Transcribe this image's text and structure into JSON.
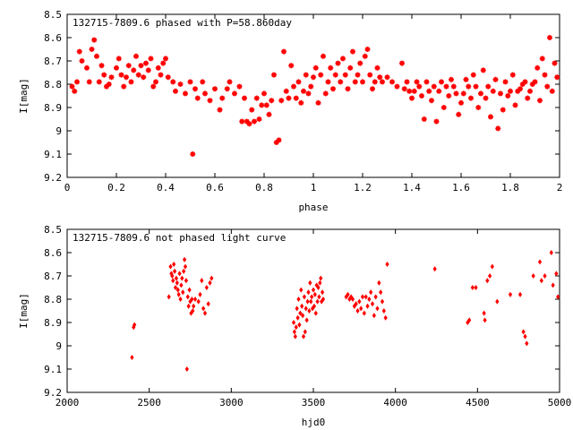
{
  "chart_data": [
    {
      "type": "scatter",
      "title": "132715-7809.6 phased with P=58.860day",
      "xlabel": "phase",
      "ylabel": "I[mag]",
      "xlim": [
        0,
        2
      ],
      "ylim": [
        8.5,
        9.2
      ],
      "y_inverted": true,
      "x_ticks": [
        "0",
        "0.2",
        "0.4",
        "0.6",
        "0.8",
        "1",
        "1.2",
        "1.4",
        "1.6",
        "1.8",
        "2"
      ],
      "y_ticks": [
        "8.5",
        "8.6",
        "8.7",
        "8.8",
        "8.9",
        "9",
        "9.1",
        "9.2"
      ],
      "marker_color": "#ff0000",
      "points": [
        [
          0.02,
          8.81
        ],
        [
          0.03,
          8.83
        ],
        [
          0.04,
          8.79
        ],
        [
          0.05,
          8.66
        ],
        [
          0.06,
          8.7
        ],
        [
          0.08,
          8.73
        ],
        [
          0.09,
          8.79
        ],
        [
          0.1,
          8.65
        ],
        [
          0.11,
          8.61
        ],
        [
          0.12,
          8.68
        ],
        [
          0.13,
          8.79
        ],
        [
          0.14,
          8.72
        ],
        [
          0.15,
          8.76
        ],
        [
          0.16,
          8.81
        ],
        [
          0.17,
          8.8
        ],
        [
          0.18,
          8.77
        ],
        [
          0.2,
          8.73
        ],
        [
          0.21,
          8.69
        ],
        [
          0.22,
          8.76
        ],
        [
          0.23,
          8.81
        ],
        [
          0.24,
          8.77
        ],
        [
          0.25,
          8.72
        ],
        [
          0.26,
          8.79
        ],
        [
          0.27,
          8.74
        ],
        [
          0.28,
          8.68
        ],
        [
          0.29,
          8.76
        ],
        [
          0.3,
          8.72
        ],
        [
          0.31,
          8.77
        ],
        [
          0.32,
          8.71
        ],
        [
          0.33,
          8.74
        ],
        [
          0.34,
          8.69
        ],
        [
          0.35,
          8.81
        ],
        [
          0.36,
          8.79
        ],
        [
          0.37,
          8.73
        ],
        [
          0.38,
          8.76
        ],
        [
          0.39,
          8.71
        ],
        [
          0.4,
          8.69
        ],
        [
          0.41,
          8.77
        ],
        [
          0.43,
          8.79
        ],
        [
          0.44,
          8.83
        ],
        [
          0.46,
          8.8
        ],
        [
          0.48,
          8.84
        ],
        [
          0.5,
          8.79
        ],
        [
          0.51,
          9.1
        ],
        [
          0.52,
          8.82
        ],
        [
          0.53,
          8.86
        ],
        [
          0.55,
          8.79
        ],
        [
          0.56,
          8.84
        ],
        [
          0.58,
          8.87
        ],
        [
          0.6,
          8.82
        ],
        [
          0.62,
          8.91
        ],
        [
          0.63,
          8.86
        ],
        [
          0.65,
          8.82
        ],
        [
          0.66,
          8.79
        ],
        [
          0.68,
          8.84
        ],
        [
          0.7,
          8.81
        ],
        [
          0.71,
          8.96
        ],
        [
          0.72,
          8.86
        ],
        [
          0.73,
          8.96
        ],
        [
          0.74,
          8.97
        ],
        [
          0.75,
          8.91
        ],
        [
          0.76,
          8.96
        ],
        [
          0.77,
          8.86
        ],
        [
          0.78,
          8.95
        ],
        [
          0.79,
          8.89
        ],
        [
          0.8,
          8.84
        ],
        [
          0.81,
          8.89
        ],
        [
          0.82,
          8.93
        ],
        [
          0.83,
          8.87
        ],
        [
          0.84,
          8.76
        ],
        [
          0.85,
          9.05
        ],
        [
          0.86,
          9.04
        ],
        [
          0.87,
          8.87
        ],
        [
          0.88,
          8.66
        ],
        [
          0.89,
          8.83
        ],
        [
          0.9,
          8.86
        ],
        [
          0.91,
          8.72
        ],
        [
          0.92,
          8.81
        ],
        [
          0.93,
          8.86
        ],
        [
          0.94,
          8.79
        ],
        [
          0.95,
          8.88
        ],
        [
          0.96,
          8.83
        ],
        [
          0.97,
          8.76
        ],
        [
          0.98,
          8.84
        ],
        [
          0.99,
          8.81
        ],
        [
          1.0,
          8.77
        ],
        [
          1.01,
          8.73
        ],
        [
          1.02,
          8.88
        ],
        [
          1.03,
          8.76
        ],
        [
          1.04,
          8.68
        ],
        [
          1.05,
          8.84
        ],
        [
          1.06,
          8.79
        ],
        [
          1.07,
          8.73
        ],
        [
          1.08,
          8.82
        ],
        [
          1.09,
          8.76
        ],
        [
          1.1,
          8.71
        ],
        [
          1.11,
          8.79
        ],
        [
          1.12,
          8.69
        ],
        [
          1.13,
          8.76
        ],
        [
          1.14,
          8.82
        ],
        [
          1.15,
          8.73
        ],
        [
          1.16,
          8.66
        ],
        [
          1.17,
          8.79
        ],
        [
          1.18,
          8.76
        ],
        [
          1.19,
          8.71
        ],
        [
          1.2,
          8.79
        ],
        [
          1.21,
          8.68
        ],
        [
          1.22,
          8.65
        ],
        [
          1.23,
          8.76
        ],
        [
          1.24,
          8.82
        ],
        [
          1.25,
          8.79
        ],
        [
          1.26,
          8.73
        ],
        [
          1.27,
          8.77
        ],
        [
          1.28,
          8.79
        ],
        [
          1.3,
          8.77
        ],
        [
          1.32,
          8.79
        ],
        [
          1.34,
          8.81
        ],
        [
          1.36,
          8.71
        ],
        [
          1.37,
          8.82
        ],
        [
          1.38,
          8.79
        ],
        [
          1.39,
          8.83
        ],
        [
          1.4,
          8.86
        ],
        [
          1.41,
          8.83
        ],
        [
          1.42,
          8.79
        ],
        [
          1.43,
          8.81
        ],
        [
          1.44,
          8.85
        ],
        [
          1.45,
          8.95
        ],
        [
          1.46,
          8.79
        ],
        [
          1.47,
          8.83
        ],
        [
          1.48,
          8.87
        ],
        [
          1.49,
          8.81
        ],
        [
          1.5,
          8.96
        ],
        [
          1.51,
          8.83
        ],
        [
          1.52,
          8.79
        ],
        [
          1.53,
          8.9
        ],
        [
          1.54,
          8.81
        ],
        [
          1.55,
          8.85
        ],
        [
          1.56,
          8.78
        ],
        [
          1.57,
          8.81
        ],
        [
          1.58,
          8.84
        ],
        [
          1.59,
          8.93
        ],
        [
          1.6,
          8.88
        ],
        [
          1.61,
          8.84
        ],
        [
          1.62,
          8.78
        ],
        [
          1.63,
          8.81
        ],
        [
          1.64,
          8.86
        ],
        [
          1.65,
          8.76
        ],
        [
          1.66,
          8.81
        ],
        [
          1.67,
          8.9
        ],
        [
          1.68,
          8.84
        ],
        [
          1.69,
          8.74
        ],
        [
          1.7,
          8.86
        ],
        [
          1.71,
          8.81
        ],
        [
          1.72,
          8.94
        ],
        [
          1.73,
          8.83
        ],
        [
          1.74,
          8.78
        ],
        [
          1.75,
          8.99
        ],
        [
          1.76,
          8.84
        ],
        [
          1.77,
          8.91
        ],
        [
          1.78,
          8.79
        ],
        [
          1.79,
          8.85
        ],
        [
          1.8,
          8.83
        ],
        [
          1.81,
          8.76
        ],
        [
          1.82,
          8.89
        ],
        [
          1.83,
          8.83
        ],
        [
          1.84,
          8.82
        ],
        [
          1.85,
          8.8
        ],
        [
          1.86,
          8.79
        ],
        [
          1.87,
          8.86
        ],
        [
          1.88,
          8.83
        ],
        [
          1.89,
          8.8
        ],
        [
          1.9,
          8.79
        ],
        [
          1.91,
          8.73
        ],
        [
          1.92,
          8.87
        ],
        [
          1.93,
          8.69
        ],
        [
          1.94,
          8.76
        ],
        [
          1.95,
          8.81
        ],
        [
          1.96,
          8.6
        ],
        [
          1.97,
          8.83
        ],
        [
          1.98,
          8.71
        ],
        [
          1.99,
          8.77
        ]
      ]
    },
    {
      "type": "scatter",
      "title": "132715-7809.6 not phased light curve",
      "xlabel": "hjd0",
      "ylabel": "I[mag]",
      "xlim": [
        2000,
        5000
      ],
      "ylim": [
        8.5,
        9.2
      ],
      "y_inverted": true,
      "x_ticks": [
        "2000",
        "2500",
        "3000",
        "3500",
        "4000",
        "4500",
        "5000"
      ],
      "y_ticks": [
        "8.5",
        "8.6",
        "8.7",
        "8.8",
        "8.9",
        "9",
        "9.1",
        "9.2"
      ],
      "marker_color": "#ff0000",
      "points": [
        [
          2395,
          9.05
        ],
        [
          2405,
          8.92
        ],
        [
          2410,
          8.91
        ],
        [
          2620,
          8.79
        ],
        [
          2630,
          8.66
        ],
        [
          2635,
          8.69
        ],
        [
          2640,
          8.7
        ],
        [
          2645,
          8.72
        ],
        [
          2650,
          8.65
        ],
        [
          2655,
          8.68
        ],
        [
          2660,
          8.75
        ],
        [
          2665,
          8.71
        ],
        [
          2670,
          8.73
        ],
        [
          2675,
          8.76
        ],
        [
          2680,
          8.78
        ],
        [
          2685,
          8.69
        ],
        [
          2690,
          8.8
        ],
        [
          2695,
          8.74
        ],
        [
          2700,
          8.71
        ],
        [
          2705,
          8.77
        ],
        [
          2710,
          8.68
        ],
        [
          2715,
          8.63
        ],
        [
          2720,
          8.66
        ],
        [
          2725,
          8.72
        ],
        [
          2730,
          9.1
        ],
        [
          2735,
          8.79
        ],
        [
          2740,
          8.83
        ],
        [
          2745,
          8.76
        ],
        [
          2750,
          8.81
        ],
        [
          2755,
          8.86
        ],
        [
          2760,
          8.8
        ],
        [
          2765,
          8.85
        ],
        [
          2770,
          8.83
        ],
        [
          2780,
          8.8
        ],
        [
          2800,
          8.81
        ],
        [
          2810,
          8.78
        ],
        [
          2820,
          8.72
        ],
        [
          2830,
          8.84
        ],
        [
          2840,
          8.86
        ],
        [
          2850,
          8.75
        ],
        [
          2860,
          8.82
        ],
        [
          2870,
          8.73
        ],
        [
          2880,
          8.71
        ],
        [
          3380,
          8.9
        ],
        [
          3385,
          8.94
        ],
        [
          3390,
          8.96
        ],
        [
          3395,
          8.92
        ],
        [
          3400,
          8.84
        ],
        [
          3405,
          8.88
        ],
        [
          3410,
          8.8
        ],
        [
          3415,
          8.91
        ],
        [
          3420,
          8.86
        ],
        [
          3425,
          8.76
        ],
        [
          3430,
          8.83
        ],
        [
          3435,
          8.87
        ],
        [
          3440,
          8.96
        ],
        [
          3445,
          8.79
        ],
        [
          3450,
          8.94
        ],
        [
          3455,
          8.84
        ],
        [
          3460,
          8.89
        ],
        [
          3465,
          8.81
        ],
        [
          3470,
          8.77
        ],
        [
          3475,
          8.85
        ],
        [
          3480,
          8.73
        ],
        [
          3485,
          8.81
        ],
        [
          3490,
          8.79
        ],
        [
          3495,
          8.84
        ],
        [
          3500,
          8.76
        ],
        [
          3505,
          8.83
        ],
        [
          3510,
          8.78
        ],
        [
          3515,
          8.86
        ],
        [
          3520,
          8.74
        ],
        [
          3525,
          8.81
        ],
        [
          3530,
          8.75
        ],
        [
          3535,
          8.79
        ],
        [
          3540,
          8.73
        ],
        [
          3545,
          8.71
        ],
        [
          3550,
          8.81
        ],
        [
          3555,
          8.77
        ],
        [
          3560,
          8.8
        ],
        [
          3700,
          8.79
        ],
        [
          3710,
          8.78
        ],
        [
          3720,
          8.8
        ],
        [
          3730,
          8.79
        ],
        [
          3740,
          8.8
        ],
        [
          3750,
          8.83
        ],
        [
          3760,
          8.82
        ],
        [
          3770,
          8.85
        ],
        [
          3780,
          8.81
        ],
        [
          3790,
          8.84
        ],
        [
          3800,
          8.79
        ],
        [
          3810,
          8.86
        ],
        [
          3820,
          8.79
        ],
        [
          3830,
          8.83
        ],
        [
          3840,
          8.8
        ],
        [
          3850,
          8.77
        ],
        [
          3860,
          8.82
        ],
        [
          3870,
          8.87
        ],
        [
          3880,
          8.79
        ],
        [
          3890,
          8.84
        ],
        [
          3900,
          8.73
        ],
        [
          3910,
          8.77
        ],
        [
          3920,
          8.81
        ],
        [
          3930,
          8.85
        ],
        [
          3940,
          8.88
        ],
        [
          3950,
          8.65
        ],
        [
          4240,
          8.67
        ],
        [
          4440,
          8.9
        ],
        [
          4450,
          8.89
        ],
        [
          4470,
          8.75
        ],
        [
          4490,
          8.75
        ],
        [
          4540,
          8.86
        ],
        [
          4545,
          8.89
        ],
        [
          4560,
          8.72
        ],
        [
          4575,
          8.7
        ],
        [
          4590,
          8.66
        ],
        [
          4620,
          8.81
        ],
        [
          4700,
          8.78
        ],
        [
          4760,
          8.78
        ],
        [
          4780,
          8.94
        ],
        [
          4790,
          8.96
        ],
        [
          4800,
          8.99
        ],
        [
          4840,
          8.7
        ],
        [
          4880,
          8.64
        ],
        [
          4890,
          8.72
        ],
        [
          4910,
          8.7
        ],
        [
          4950,
          8.6
        ],
        [
          4960,
          8.74
        ],
        [
          4980,
          8.69
        ],
        [
          4990,
          8.79
        ]
      ]
    }
  ]
}
